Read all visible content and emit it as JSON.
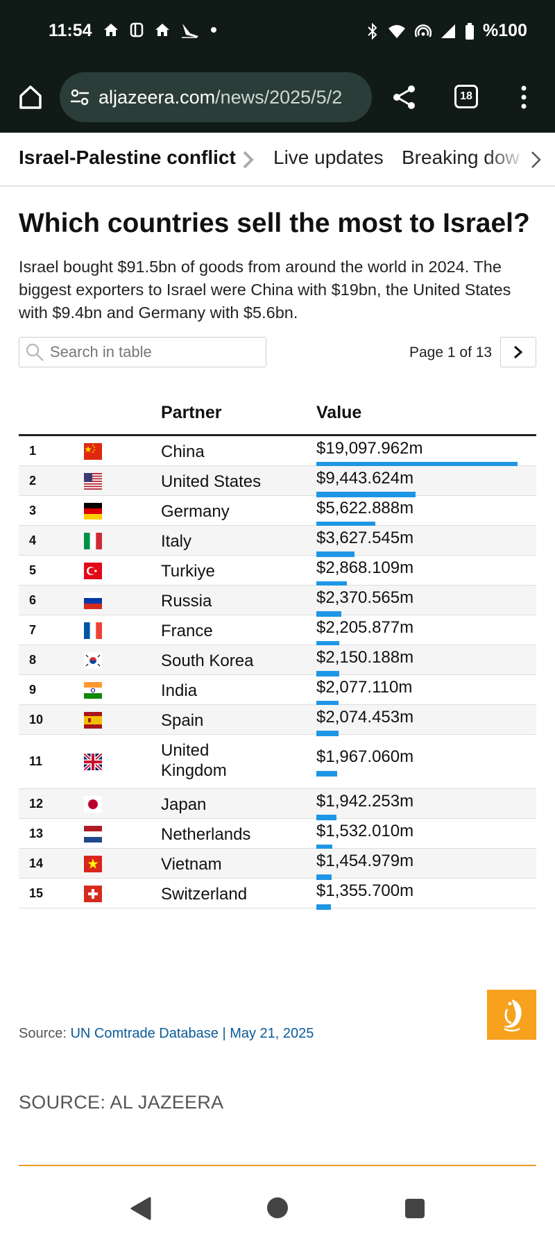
{
  "status_bar": {
    "time": "11:54",
    "battery": "%100",
    "left_icons": [
      "home-icon",
      "badge-icon",
      "home-icon",
      "airplane-icon",
      "dot-icon"
    ],
    "right_icons": [
      "bluetooth-icon",
      "wifi-icon",
      "hotspot-icon",
      "signal-icon",
      "battery-icon"
    ]
  },
  "browser": {
    "url_host": "aljazeera.com",
    "url_path": "/news/2025/5/2",
    "tab_count": "18"
  },
  "subnav": {
    "items": [
      {
        "label": "Israel-Palestine conflict"
      },
      {
        "label": "Live updates"
      },
      {
        "label": "Breaking dow"
      }
    ]
  },
  "article": {
    "headline": "Which countries sell the most to Israel?",
    "description": "Israel bought $91.5bn of goods from around the world in 2024. The biggest exporters to Israel were China with $19bn, the United States with $9.4bn and Germany with $5.6bn."
  },
  "table_controls": {
    "search_placeholder": "Search in table",
    "page_text": "Page 1 of 13"
  },
  "table": {
    "headers": {
      "partner": "Partner",
      "value": "Value"
    },
    "max_value": 19097.962,
    "rows": [
      {
        "rank": "1",
        "flag": "china-flag-icon",
        "partner": "China",
        "value": "$19,097.962m",
        "amount": 19097.962
      },
      {
        "rank": "2",
        "flag": "usa-flag-icon",
        "partner": "United States",
        "value": "$9,443.624m",
        "amount": 9443.624
      },
      {
        "rank": "3",
        "flag": "germany-flag-icon",
        "partner": "Germany",
        "value": "$5,622.888m",
        "amount": 5622.888
      },
      {
        "rank": "4",
        "flag": "italy-flag-icon",
        "partner": "Italy",
        "value": "$3,627.545m",
        "amount": 3627.545
      },
      {
        "rank": "5",
        "flag": "turkiye-flag-icon",
        "partner": "Turkiye",
        "value": "$2,868.109m",
        "amount": 2868.109
      },
      {
        "rank": "6",
        "flag": "russia-flag-icon",
        "partner": "Russia",
        "value": "$2,370.565m",
        "amount": 2370.565
      },
      {
        "rank": "7",
        "flag": "france-flag-icon",
        "partner": "France",
        "value": "$2,205.877m",
        "amount": 2205.877
      },
      {
        "rank": "8",
        "flag": "south-korea-flag-icon",
        "partner": "South Korea",
        "value": "$2,150.188m",
        "amount": 2150.188
      },
      {
        "rank": "9",
        "flag": "india-flag-icon",
        "partner": "India",
        "value": "$2,077.110m",
        "amount": 2077.11
      },
      {
        "rank": "10",
        "flag": "spain-flag-icon",
        "partner": "Spain",
        "value": "$2,074.453m",
        "amount": 2074.453
      },
      {
        "rank": "11",
        "flag": "uk-flag-icon",
        "partner": "United Kingdom",
        "value": "$1,967.060m",
        "amount": 1967.06
      },
      {
        "rank": "12",
        "flag": "japan-flag-icon",
        "partner": "Japan",
        "value": "$1,942.253m",
        "amount": 1942.253
      },
      {
        "rank": "13",
        "flag": "netherlands-flag-icon",
        "partner": "Netherlands",
        "value": "$1,532.010m",
        "amount": 1532.01
      },
      {
        "rank": "14",
        "flag": "vietnam-flag-icon",
        "partner": "Vietnam",
        "value": "$1,454.979m",
        "amount": 1454.979
      },
      {
        "rank": "15",
        "flag": "switzerland-flag-icon",
        "partner": "Switzerland",
        "value": "$1,355.700m",
        "amount": 1355.7
      }
    ]
  },
  "footer": {
    "source_label": "Source: ",
    "source_link": "UN Comtrade Database | May 21, 2025",
    "credit": "SOURCE: AL JAZEERA"
  },
  "colors": {
    "bar": "#1e96e6",
    "chrome_bg": "#101a17",
    "logo_bg": "#f7a11c",
    "rule": "#e89d24"
  }
}
